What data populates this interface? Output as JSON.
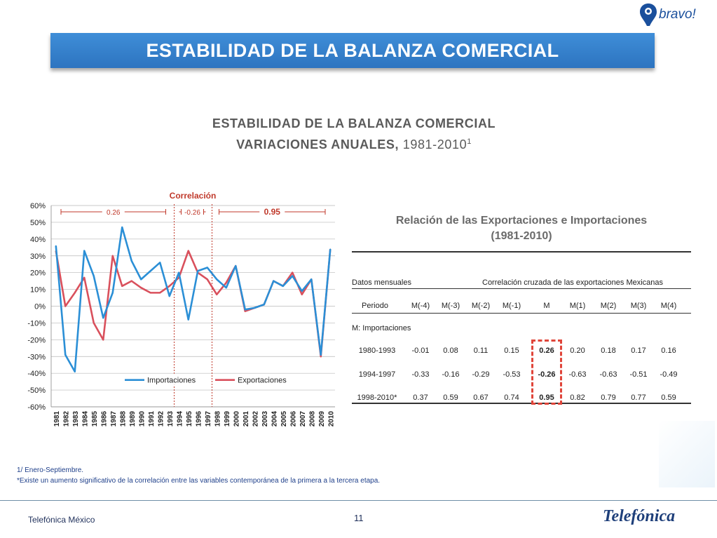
{
  "logo": {
    "brand_text": "bravo!",
    "icon": "bravo-logo-icon"
  },
  "banner": {
    "title": "ESTABILIDAD DE LA BALANZA COMERCIAL"
  },
  "subtitle": {
    "line1": "ESTABILIDAD DE LA BALANZA COMERCIAL",
    "line2_bold": "VARIACIONES ANUALES,",
    "line2_years": "1981-2010",
    "line2_sup": "1"
  },
  "colors": {
    "banner": "#2d74c0",
    "importaciones": "#2b8fd6",
    "exportaciones": "#d9505c",
    "correlacion": "#c0392b",
    "highlight_box": "#e0453a"
  },
  "chart_data": {
    "type": "line",
    "annotation_title": "Correlación",
    "periods": [
      {
        "label": "0.26",
        "from": "1981",
        "to": "1993",
        "bold": false
      },
      {
        "label": "-0.26",
        "from": "1993",
        "to": "1997",
        "bold": false
      },
      {
        "label": "0.95",
        "from": "1997",
        "to": "2010",
        "bold": true
      }
    ],
    "x": [
      "1981",
      "1982",
      "1983",
      "1984",
      "1985",
      "1986",
      "1987",
      "1988",
      "1989",
      "1990",
      "1991",
      "1992",
      "1993",
      "1994",
      "1995",
      "1996",
      "1997",
      "1998",
      "1999",
      "2000",
      "2001",
      "2002",
      "2003",
      "2004",
      "2005",
      "2006",
      "2007",
      "2008",
      "2009",
      "2010"
    ],
    "ylim": [
      -60,
      60
    ],
    "yticks": [
      "60%",
      "50%",
      "40%",
      "30%",
      "20%",
      "10%",
      "0%",
      "-10%",
      "-20%",
      "-30%",
      "-40%",
      "-50%",
      "-60%"
    ],
    "series": [
      {
        "name": "Importaciones",
        "color": "#2b8fd6",
        "values": [
          36,
          -29,
          -39,
          33,
          18,
          -7,
          8,
          47,
          27,
          16,
          21,
          26,
          6,
          20,
          -8,
          21,
          23,
          16,
          11,
          24,
          -2,
          -1,
          1,
          15,
          12,
          18,
          9,
          16,
          -29,
          34
        ]
      },
      {
        "name": "Exportaciones",
        "color": "#d9505c",
        "values": [
          33,
          0,
          8,
          17,
          -10,
          -20,
          30,
          12,
          15,
          11,
          8,
          8,
          12,
          17,
          33,
          20,
          16,
          7,
          14,
          24,
          -3,
          -1,
          1,
          15,
          12,
          20,
          7,
          16,
          -30,
          34
        ]
      }
    ],
    "grid": true,
    "legend_position": "bottom"
  },
  "table": {
    "title1": "Relación de las Exportaciones e Importaciones",
    "title2": "(1981-2010)",
    "header_left": "Datos mensuales",
    "header_right": "Correlación cruzada de las exportaciones Mexicanas",
    "columns": [
      "Periodo",
      "M(-4)",
      "M(-3)",
      "M(-2)",
      "M(-1)",
      "M",
      "M(1)",
      "M(2)",
      "M(3)",
      "M(4)"
    ],
    "note": "M: Importaciones",
    "rows": [
      {
        "period": "1980-1993",
        "values": [
          "-0.01",
          "0.08",
          "0.11",
          "0.15",
          "0.26",
          "0.20",
          "0.18",
          "0.17",
          "0.16"
        ]
      },
      {
        "period": "1994-1997",
        "values": [
          "-0.33",
          "-0.16",
          "-0.29",
          "-0.53",
          "-0.26",
          "-0.63",
          "-0.63",
          "-0.51",
          "-0.49"
        ]
      },
      {
        "period": "1998-2010*",
        "values": [
          "0.37",
          "0.59",
          "0.67",
          "0.74",
          "0.95",
          "0.82",
          "0.79",
          "0.77",
          "0.59"
        ]
      }
    ]
  },
  "footnotes": {
    "note1": "1/ Enero-Septiembre.",
    "note2": "*Existe un aumento significativo de la correlación entre las variables contemporánea de la primera a la tercera etapa."
  },
  "footer": {
    "company": "Telefónica México",
    "page": "11",
    "brand": "Telefónica"
  }
}
